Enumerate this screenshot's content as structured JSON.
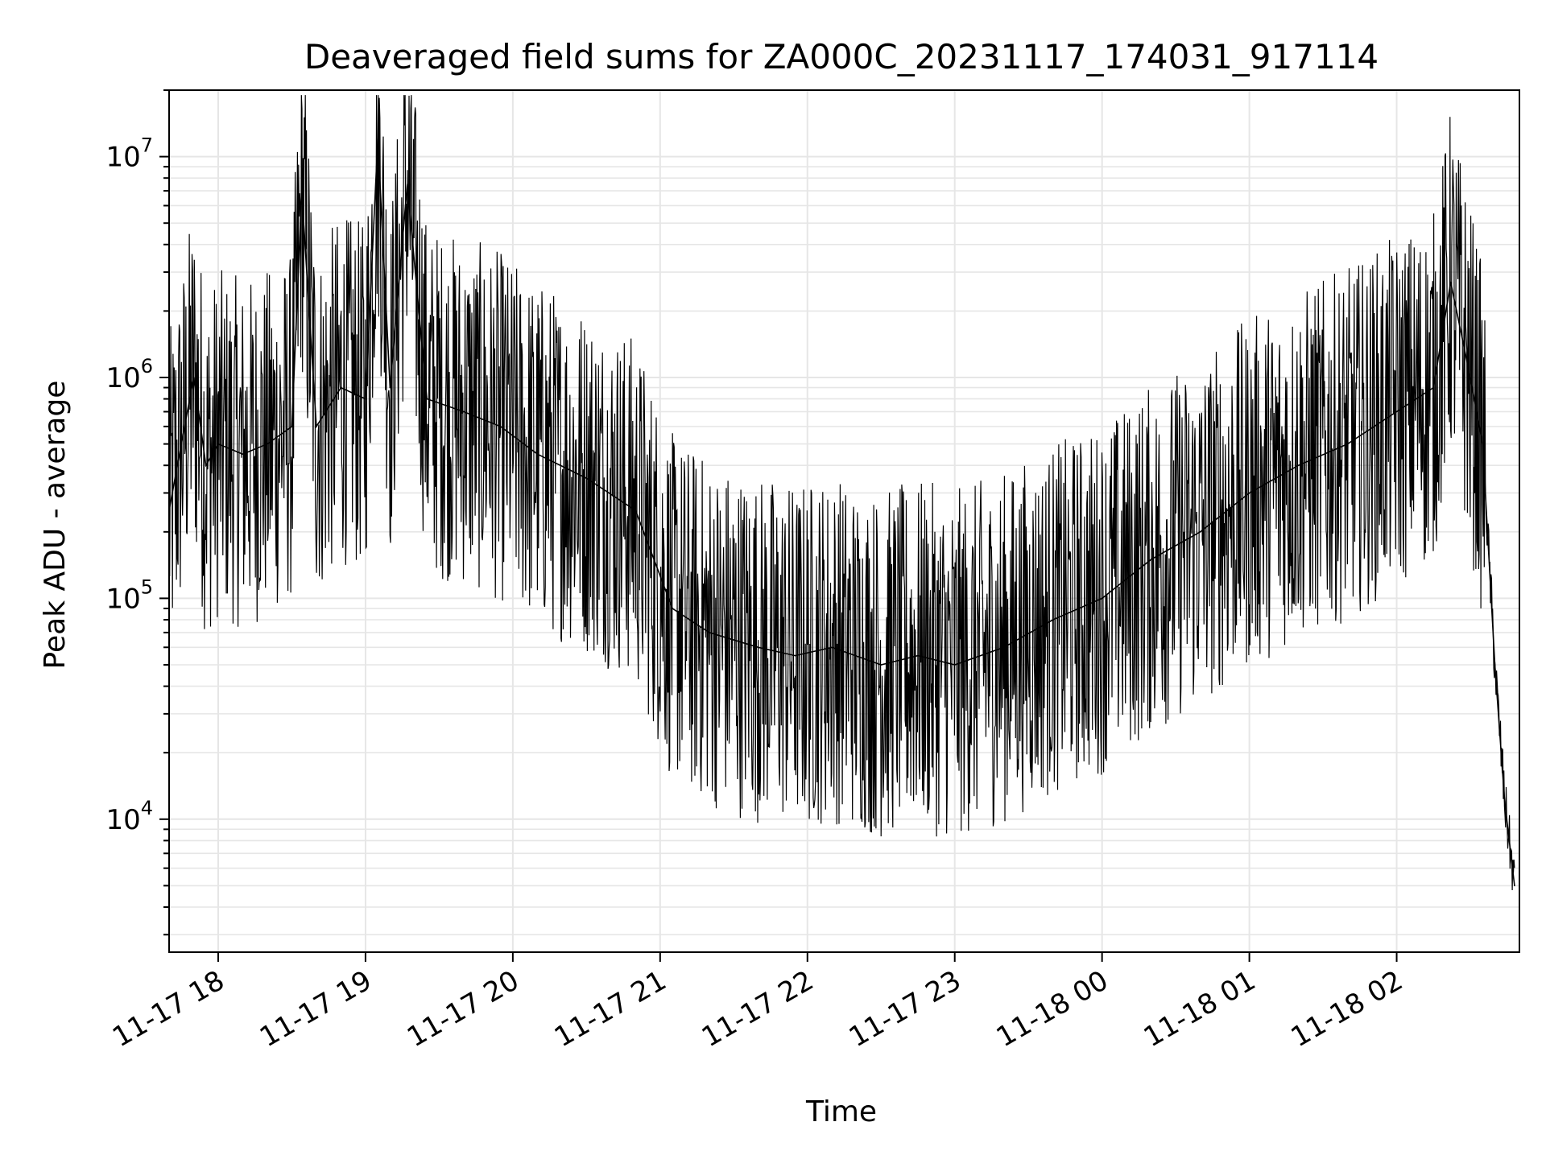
{
  "chart_data": {
    "type": "line",
    "title": "Deaveraged field sums for ZA000C_20231117_174031_917114",
    "xlabel": "Time",
    "ylabel": "Peak ADU - average",
    "yscale": "log",
    "ylim": [
      2500,
      20000000
    ],
    "xlim": [
      "2023-11-17 17:40",
      "2023-11-18 02:50"
    ],
    "grid": true,
    "line_color": "#000000",
    "grid_color": "#e6e6e6",
    "x_ticks": [
      {
        "label": "11-17 18",
        "t": "2023-11-17 18:00"
      },
      {
        "label": "11-17 19",
        "t": "2023-11-17 19:00"
      },
      {
        "label": "11-17 20",
        "t": "2023-11-17 20:00"
      },
      {
        "label": "11-17 21",
        "t": "2023-11-17 21:00"
      },
      {
        "label": "11-17 22",
        "t": "2023-11-17 22:00"
      },
      {
        "label": "11-17 23",
        "t": "2023-11-17 23:00"
      },
      {
        "label": "11-18 00",
        "t": "2023-11-18 00:00"
      },
      {
        "label": "11-18 01",
        "t": "2023-11-18 01:00"
      },
      {
        "label": "11-18 02",
        "t": "2023-11-18 02:00"
      }
    ],
    "y_ticks": [
      {
        "base": "10",
        "exp": "4",
        "value": 10000
      },
      {
        "base": "10",
        "exp": "5",
        "value": 100000
      },
      {
        "base": "10",
        "exp": "6",
        "value": 1000000
      },
      {
        "base": "10",
        "exp": "7",
        "value": 10000000
      }
    ],
    "series": [
      {
        "x": [
          "2023-11-17 17:40",
          "2023-11-17 17:45",
          "2023-11-17 17:50",
          "2023-11-17 17:52",
          "2023-11-17 17:55",
          "2023-11-17 18:00",
          "2023-11-17 18:10",
          "2023-11-17 18:20",
          "2023-11-17 18:30",
          "2023-11-17 18:34",
          "2023-11-17 18:40",
          "2023-11-17 18:50",
          "2023-11-17 19:00",
          "2023-11-17 19:05",
          "2023-11-17 19:10",
          "2023-11-17 19:17",
          "2023-11-17 19:25",
          "2023-11-17 19:40",
          "2023-11-17 19:55",
          "2023-11-17 20:10",
          "2023-11-17 20:30",
          "2023-11-17 20:50",
          "2023-11-17 21:05",
          "2023-11-17 21:20",
          "2023-11-17 21:40",
          "2023-11-17 21:55",
          "2023-11-17 22:10",
          "2023-11-17 22:30",
          "2023-11-17 22:45",
          "2023-11-17 23:00",
          "2023-11-17 23:20",
          "2023-11-17 23:40",
          "2023-11-18 00:00",
          "2023-11-18 00:20",
          "2023-11-18 00:40",
          "2023-11-18 01:00",
          "2023-11-18 01:20",
          "2023-11-18 01:40",
          "2023-11-18 02:00",
          "2023-11-18 02:15",
          "2023-11-18 02:22",
          "2023-11-18 02:30",
          "2023-11-18 02:35",
          "2023-11-18 02:40",
          "2023-11-18 02:44",
          "2023-11-18 02:48"
        ],
        "values": [
          250000,
          500000,
          1000000,
          700000,
          400000,
          500000,
          450000,
          500000,
          600000,
          7000000,
          600000,
          900000,
          800000,
          12000000,
          900000,
          7500000,
          800000,
          700000,
          600000,
          450000,
          350000,
          250000,
          90000,
          70000,
          60000,
          55000,
          60000,
          50000,
          55000,
          50000,
          60000,
          80000,
          100000,
          150000,
          200000,
          300000,
          400000,
          500000,
          700000,
          900000,
          2700000,
          1000000,
          500000,
          50000,
          12000,
          5000
        ]
      }
    ]
  }
}
